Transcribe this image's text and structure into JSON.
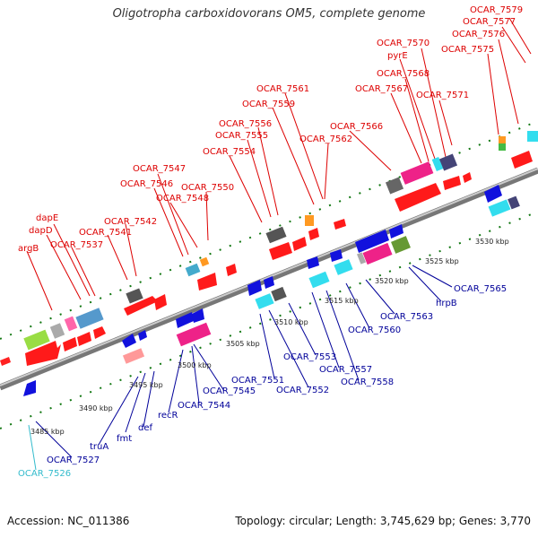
{
  "title": "Oligotropha carboxidovorans OM5, complete genome",
  "footer": {
    "accession": "Accession: NC_011386",
    "summary": "Topology: circular; Length: 3,745,629 bp; Genes: 3,770"
  },
  "colors": {
    "upper_label": "#dd0000",
    "lower_label": "#000099",
    "rna_label": "#33bbcc",
    "backbone": "#888888",
    "tick": "#117711"
  },
  "ticks": [
    {
      "label": "3485 kbp"
    },
    {
      "label": "3490 kbp"
    },
    {
      "label": "3495 kbp"
    },
    {
      "label": "3500 kbp"
    },
    {
      "label": "3505 kbp"
    },
    {
      "label": "3510 kbp"
    },
    {
      "label": "3515 kbp"
    },
    {
      "label": "3520 kbp"
    },
    {
      "label": "3525 kbp"
    },
    {
      "label": "3530 kbp"
    }
  ],
  "upper_labels": [
    {
      "text": "OCAR_7579"
    },
    {
      "text": "OCAR_7577"
    },
    {
      "text": "OCAR_7576"
    },
    {
      "text": "OCAR_7570"
    },
    {
      "text": "OCAR_7575"
    },
    {
      "text": "pyrE"
    },
    {
      "text": "OCAR_7568"
    },
    {
      "text": "OCAR_7567"
    },
    {
      "text": "OCAR_7571"
    },
    {
      "text": "OCAR_7561"
    },
    {
      "text": "OCAR_7559"
    },
    {
      "text": "OCAR_7556"
    },
    {
      "text": "OCAR_7566"
    },
    {
      "text": "OCAR_7555"
    },
    {
      "text": "OCAR_7562"
    },
    {
      "text": "OCAR_7554"
    },
    {
      "text": "OCAR_7547"
    },
    {
      "text": "OCAR_7546"
    },
    {
      "text": "OCAR_7550"
    },
    {
      "text": "OCAR_7548"
    },
    {
      "text": "dapE"
    },
    {
      "text": "OCAR_7542"
    },
    {
      "text": "dapD"
    },
    {
      "text": "OCAR_7541"
    },
    {
      "text": "OCAR_7537"
    },
    {
      "text": "argB"
    }
  ],
  "lower_labels": [
    {
      "text": "OCAR_7565"
    },
    {
      "text": "hrpB"
    },
    {
      "text": "OCAR_7563"
    },
    {
      "text": "OCAR_7560"
    },
    {
      "text": "OCAR_7557"
    },
    {
      "text": "OCAR_7553"
    },
    {
      "text": "OCAR_7558"
    },
    {
      "text": "OCAR_7551"
    },
    {
      "text": "OCAR_7552"
    },
    {
      "text": "OCAR_7545"
    },
    {
      "text": "OCAR_7544"
    },
    {
      "text": "recR"
    },
    {
      "text": "def"
    },
    {
      "text": "fmt"
    },
    {
      "text": "truA"
    },
    {
      "text": "OCAR_7527"
    },
    {
      "text": "OCAR_7526"
    }
  ]
}
